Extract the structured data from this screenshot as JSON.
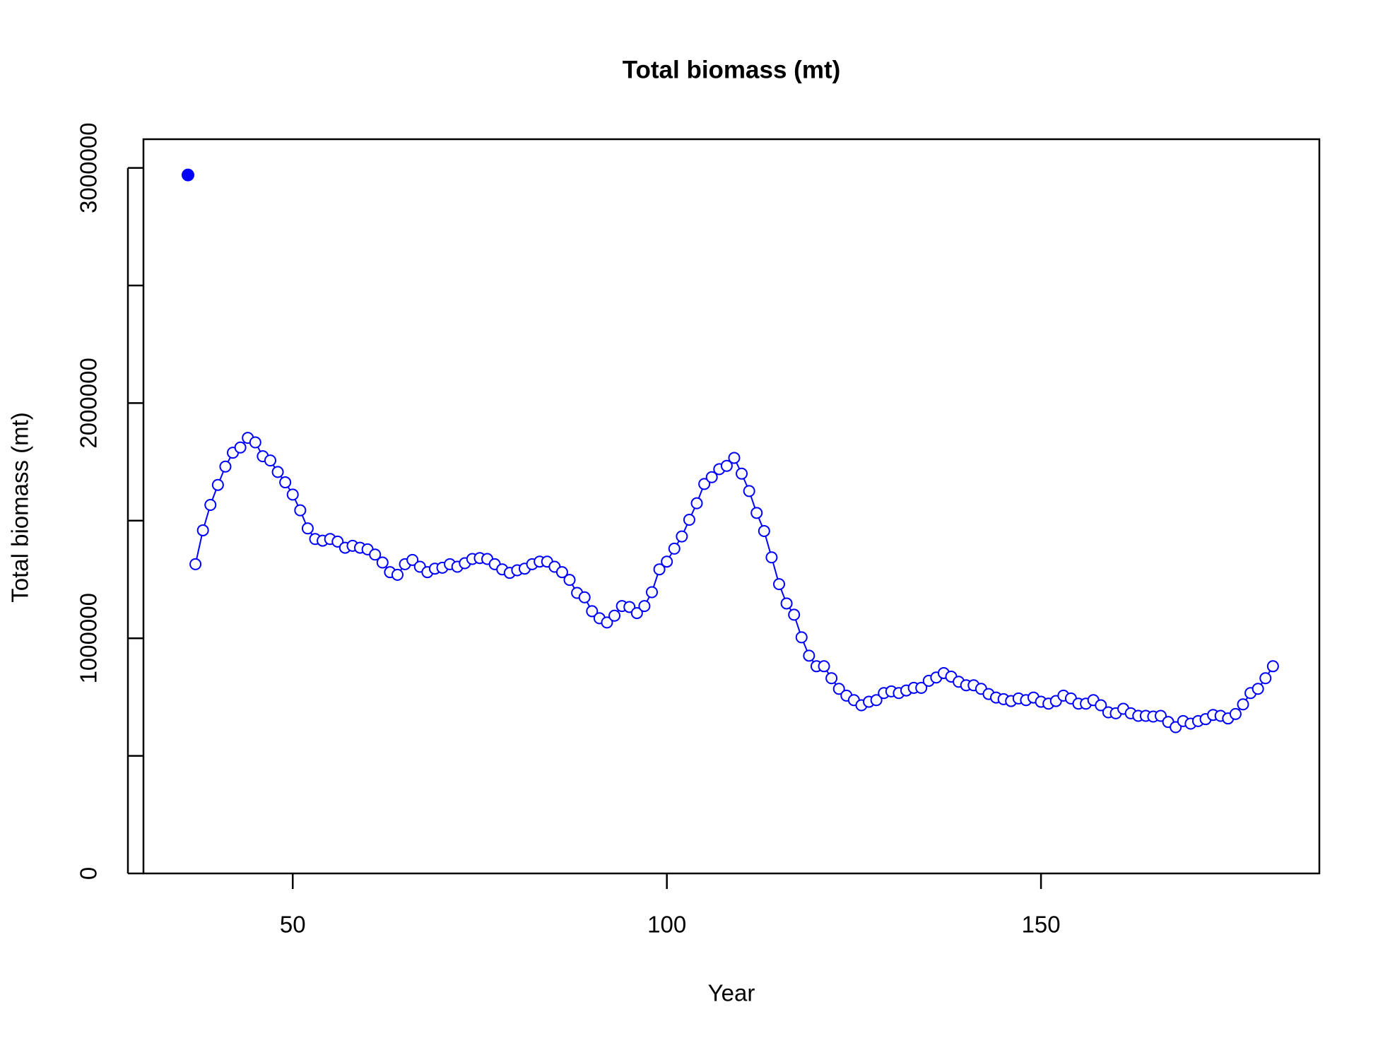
{
  "chart_data": {
    "type": "line",
    "title": "Total biomass (mt)",
    "x_label": "Year",
    "y_label": "Total biomass (mt)",
    "xlim": [
      30.05,
      187.2
    ],
    "ylim": [
      0,
      3122000
    ],
    "xticks": [
      50,
      100,
      150
    ],
    "yticks": [
      0,
      500000,
      1000000,
      1500000,
      2000000,
      2500000,
      3000000
    ],
    "series": [
      {
        "color": "#0000ff",
        "marker": "open-circle",
        "x": [
          37,
          38,
          39,
          40,
          41,
          42,
          43,
          44,
          45,
          46,
          47,
          48,
          49,
          50,
          51,
          52,
          53,
          54,
          55,
          56,
          57,
          58,
          59,
          60,
          61,
          62,
          63,
          64,
          65,
          66,
          67,
          68,
          69,
          70,
          71,
          72,
          73,
          74,
          75,
          76,
          77,
          78,
          79,
          80,
          81,
          82,
          83,
          84,
          85,
          86,
          87,
          88,
          89,
          90,
          91,
          92,
          93,
          94,
          95,
          96,
          97,
          98,
          99,
          100,
          101,
          102,
          103,
          104,
          105,
          106,
          107,
          108,
          109,
          110,
          111,
          112,
          113,
          114,
          115,
          116,
          117,
          118,
          119,
          120,
          121,
          122,
          123,
          124,
          125,
          126,
          127,
          128,
          129,
          130,
          131,
          132,
          133,
          134,
          135,
          136,
          137,
          138,
          139,
          140,
          141,
          142,
          143,
          144,
          145,
          146,
          147,
          148,
          149,
          150,
          151,
          152,
          153,
          154,
          155,
          156,
          157,
          158,
          159,
          160,
          161,
          162,
          163,
          164,
          165,
          166,
          167,
          168,
          169,
          170,
          171,
          172,
          173,
          174,
          175,
          176,
          177,
          178,
          179,
          180,
          181
        ],
        "values": [
          1315000,
          1459000,
          1567000,
          1652000,
          1730000,
          1789000,
          1811000,
          1852000,
          1833000,
          1774000,
          1756000,
          1707000,
          1663000,
          1611000,
          1544000,
          1467000,
          1422000,
          1415000,
          1422000,
          1411000,
          1385000,
          1393000,
          1385000,
          1378000,
          1356000,
          1322000,
          1281000,
          1270000,
          1315000,
          1333000,
          1304000,
          1281000,
          1296000,
          1300000,
          1315000,
          1304000,
          1319000,
          1337000,
          1341000,
          1337000,
          1315000,
          1293000,
          1278000,
          1289000,
          1296000,
          1315000,
          1326000,
          1326000,
          1304000,
          1281000,
          1248000,
          1193000,
          1174000,
          1115000,
          1085000,
          1067000,
          1096000,
          1137000,
          1133000,
          1107000,
          1137000,
          1196000,
          1293000,
          1326000,
          1381000,
          1433000,
          1504000,
          1574000,
          1656000,
          1685000,
          1719000,
          1733000,
          1767000,
          1700000,
          1626000,
          1533000,
          1456000,
          1344000,
          1230000,
          1148000,
          1100000,
          1004000,
          926000,
          881000,
          881000,
          830000,
          785000,
          756000,
          737000,
          715000,
          730000,
          737000,
          767000,
          774000,
          767000,
          778000,
          789000,
          789000,
          819000,
          833000,
          852000,
          837000,
          815000,
          800000,
          800000,
          785000,
          763000,
          748000,
          741000,
          733000,
          744000,
          737000,
          748000,
          730000,
          722000,
          733000,
          756000,
          744000,
          722000,
          722000,
          737000,
          715000,
          685000,
          681000,
          700000,
          681000,
          670000,
          670000,
          667000,
          670000,
          644000,
          622000,
          648000,
          637000,
          648000,
          656000,
          674000,
          670000,
          659000,
          678000,
          719000,
          767000,
          785000,
          830000,
          881000
        ]
      },
      {
        "color": "#0000ff",
        "marker": "filled-circle",
        "x": [
          36
        ],
        "values": [
          2970000
        ]
      }
    ]
  }
}
